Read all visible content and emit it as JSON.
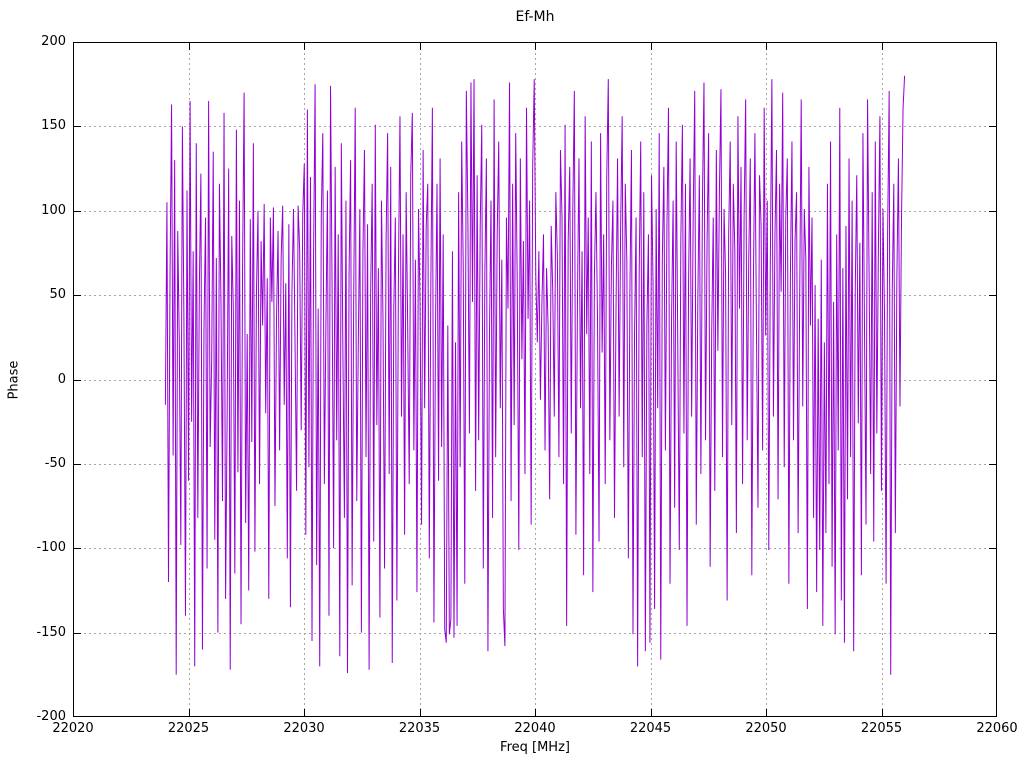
{
  "chart_data": {
    "type": "line",
    "title": "Ef-Mh",
    "xlabel": "Freq [MHz]",
    "ylabel": "Phase",
    "xlim": [
      22020,
      22060
    ],
    "ylim": [
      -200,
      200
    ],
    "x_ticks": [
      22020,
      22025,
      22030,
      22035,
      22040,
      22045,
      22050,
      22055,
      22060
    ],
    "y_ticks": [
      -200,
      -150,
      -100,
      -50,
      0,
      50,
      100,
      150,
      200
    ],
    "grid": true,
    "legend": "none",
    "line_color": "#9400d3",
    "grid_color": "#a6a6a6",
    "border_color": "#000000",
    "x_start": 22024.0,
    "x_end": 22056.0,
    "y": [
      -15,
      105,
      -120,
      62,
      163,
      -45,
      130,
      -175,
      88,
      22,
      -98,
      150,
      35,
      -140,
      112,
      -60,
      165,
      -25,
      76,
      -170,
      140,
      -82,
      55,
      122,
      -160,
      30,
      96,
      -112,
      165,
      -40,
      12,
      135,
      -95,
      72,
      -150,
      116,
      47,
      -72,
      158,
      -130,
      -22,
      125,
      -172,
      85,
      42,
      -115,
      148,
      -55,
      106,
      -145,
      66,
      170,
      -85,
      27,
      -125,
      95,
      -37,
      140,
      -102,
      52,
      100,
      -62,
      82,
      32,
      104,
      -20,
      60,
      -130,
      96,
      46,
      102,
      -75,
      36,
      88,
      -42,
      72,
      103,
      -15,
      57,
      -106,
      92,
      -135,
      52,
      101,
      22,
      -66,
      103,
      77,
      -30,
      98,
      128,
      -92,
      160,
      -52,
      120,
      -155,
      72,
      175,
      -110,
      42,
      -170,
      96,
      146,
      -62,
      31,
      112,
      -140,
      174,
      56,
      -100,
      126,
      -36,
      86,
      -164,
      140,
      17,
      -82,
      106,
      -174,
      62,
      130,
      -122,
      46,
      161,
      -72,
      22,
      101,
      -150,
      76,
      136,
      -46,
      92,
      -172,
      52,
      116,
      -96,
      151,
      -27,
      66,
      -141,
      106,
      36,
      -112,
      82,
      146,
      -56,
      126,
      -168,
      42,
      96,
      -131,
      62,
      156,
      -22,
      86,
      -92,
      111,
      32,
      -62,
      121,
      158,
      -42,
      71,
      -126,
      101,
      46,
      -86,
      136,
      -17,
      91,
      116,
      -106,
      56,
      161,
      -144,
      27,
      116,
      -60,
      131,
      -40,
      86,
      -148,
      -156,
      32,
      -151,
      -142,
      76,
      -153,
      22,
      -146,
      111,
      -52,
      141,
      66,
      -121,
      171,
      96,
      -32,
      176,
      46,
      178,
      -66,
      121,
      -36,
      91,
      151,
      -112,
      62,
      131,
      -161,
      27,
      106,
      -82,
      166,
      -46,
      86,
      141,
      -17,
      71,
      -136,
      -158,
      96,
      42,
      176,
      -72,
      116,
      -27,
      146,
      56,
      -101,
      131,
      12,
      82,
      -56,
      161,
      36,
      106,
      -86,
      126,
      178,
      62,
      22,
      76,
      -12,
      46,
      86,
      -42,
      66,
      31,
      -71,
      91,
      52,
      -22,
      111,
      72,
      -46,
      136,
      96,
      -62,
      151,
      -146,
      82,
      126,
      -32,
      101,
      171,
      -92,
      46,
      131,
      -17,
      76,
      -116,
      156,
      27,
      96,
      -56,
      141,
      -126,
      62,
      111,
      36,
      -96,
      146,
      16,
      86,
      -62,
      121,
      178,
      -36,
      66,
      106,
      -82,
      42,
      131,
      -22,
      91,
      156,
      -52,
      116,
      71,
      -106,
      52,
      136,
      -151,
      26,
      96,
      -170,
      62,
      141,
      -46,
      111,
      -161,
      32,
      86,
      -156,
      121,
      56,
      -136,
      101,
      -17,
      146,
      -166,
      71,
      126,
      -42,
      91,
      161,
      -121,
      36,
      106,
      -76,
      141,
      22,
      -101,
      82,
      151,
      -32,
      116,
      -146,
      56,
      131,
      -22,
      96,
      171,
      -86,
      46,
      121,
      -56,
      106,
      176,
      -36,
      82,
      146,
      -111,
      27,
      96,
      -66,
      136,
      17,
      111,
      172,
      -46,
      101,
      62,
      -131,
      86,
      141,
      -27,
      116,
      76,
      -91,
      156,
      42,
      126,
      -62,
      96,
      166,
      -36,
      71,
      131,
      -116,
      56,
      146,
      31,
      -76,
      121,
      91,
      -42,
      161,
      26,
      106,
      -101,
      71,
      178,
      -22,
      86,
      136,
      -71,
      116,
      52,
      170,
      -52,
      96,
      131,
      -121,
      62,
      141,
      -36,
      82,
      111,
      -91,
      46,
      166,
      -16,
      101,
      71,
      -136,
      126,
      32,
      96,
      -82,
      56,
      -126,
      36,
      -101,
      71,
      -146,
      22,
      -91,
      116,
      -62,
      141,
      -111,
      46,
      -151,
      86,
      -42,
      161,
      -131,
      66,
      -156,
      91,
      -71,
      131,
      -46,
      106,
      -161,
      52,
      121,
      -26,
      81,
      -116,
      146,
      32,
      -86,
      166,
      61,
      -56,
      111,
      -96,
      141,
      -32,
      76,
      156,
      -66,
      101,
      36,
      -121,
      86,
      171,
      -175,
      52,
      116,
      -91,
      61,
      131,
      -16,
      96,
      161,
      180
    ]
  }
}
